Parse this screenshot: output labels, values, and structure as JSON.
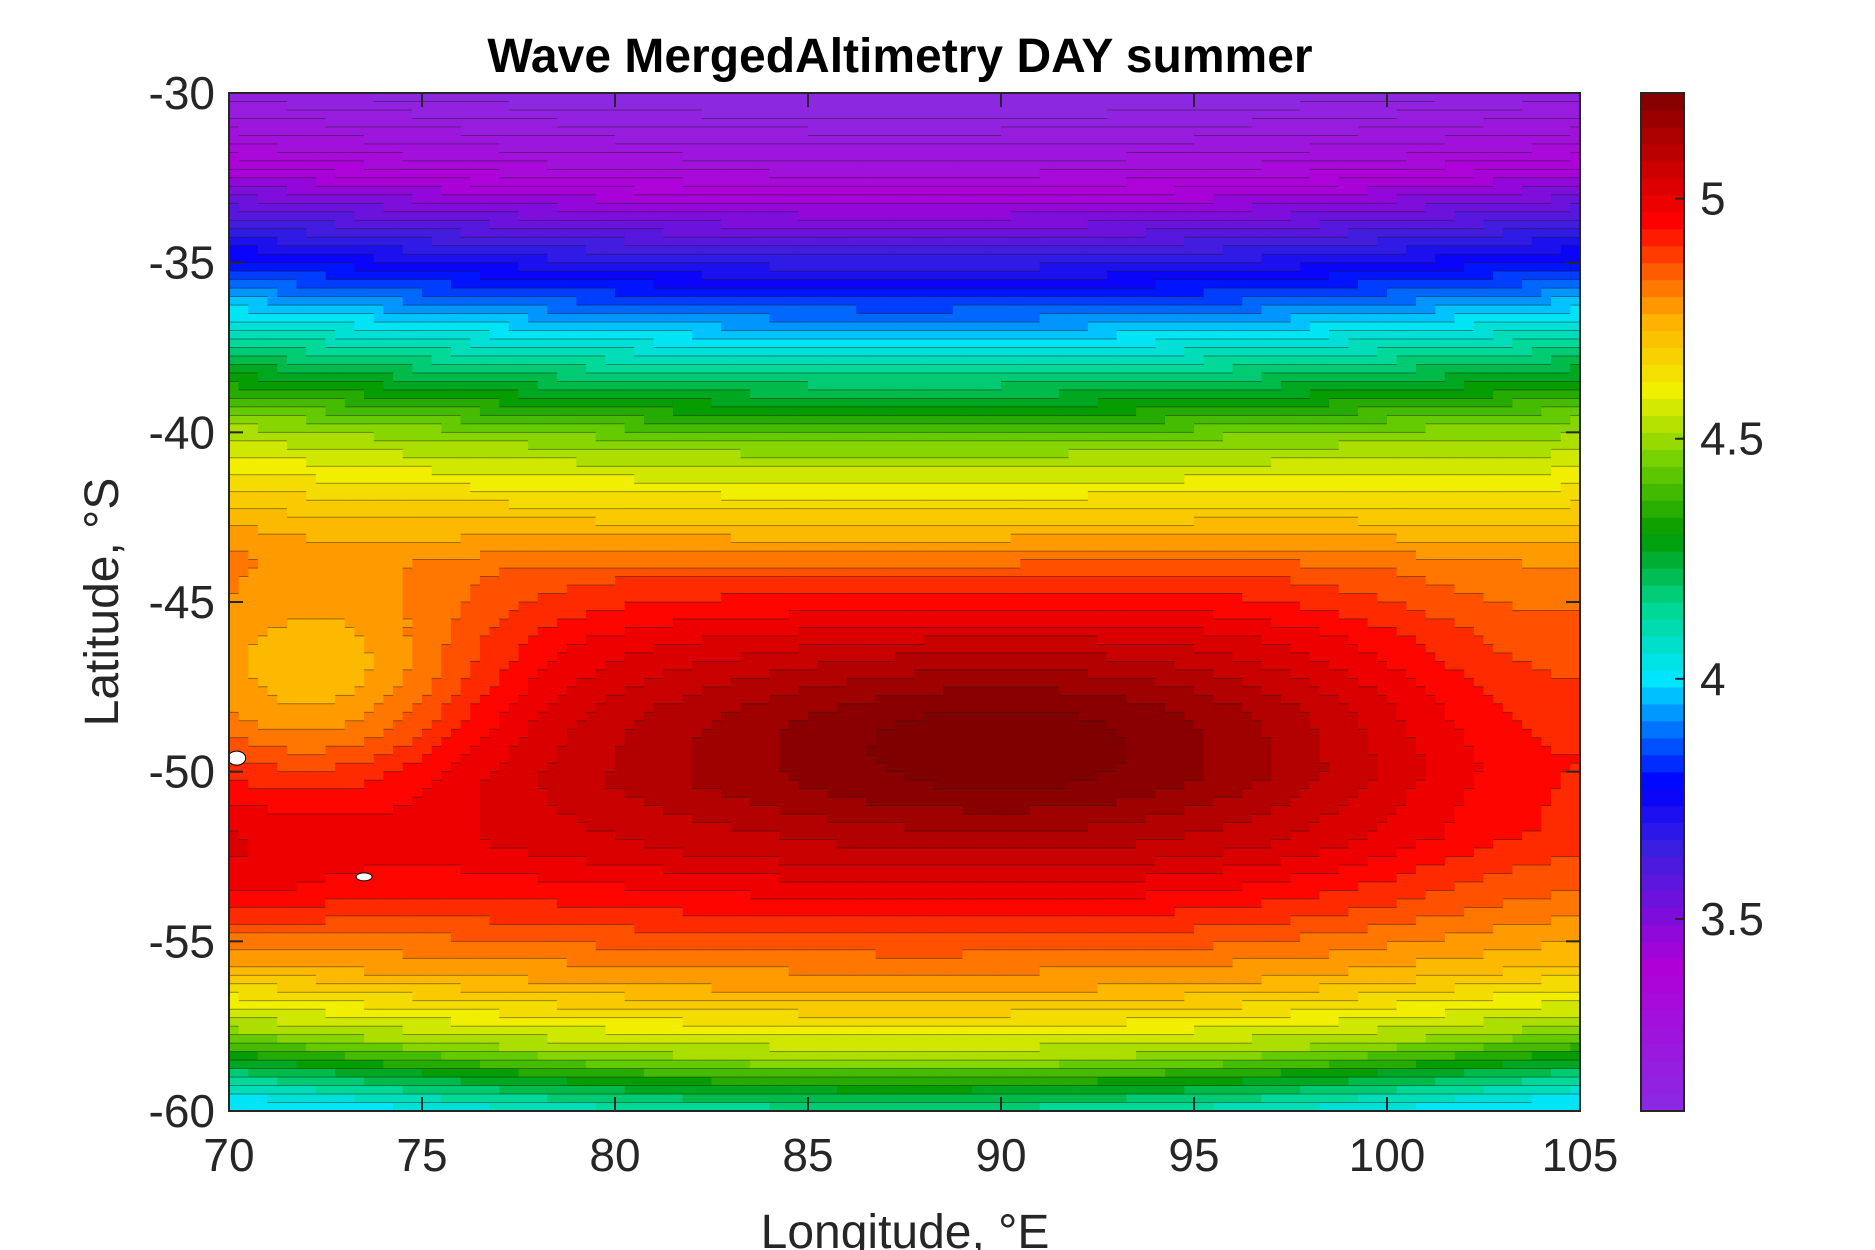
{
  "chart_data": {
    "type": "heatmap",
    "subtype": "filled-contour",
    "title": "Wave MergedAltimetry DAY summer",
    "xlabel": "Longitude, °E",
    "ylabel": "Latitude, °S",
    "xlim": [
      70,
      105
    ],
    "ylim": [
      -60,
      -30
    ],
    "xticks": [
      70,
      75,
      80,
      85,
      90,
      95,
      100,
      105
    ],
    "xtick_labels": [
      "70",
      "75",
      "80",
      "85",
      "90",
      "95",
      "100",
      "105"
    ],
    "yticks": [
      -30,
      -35,
      -40,
      -45,
      -50,
      -55,
      -60
    ],
    "ytick_labels": [
      "-30",
      "-35",
      "-40",
      "-45",
      "-50",
      "-55",
      "-60"
    ],
    "colorbar": {
      "range": [
        3.1,
        5.22
      ],
      "ticks": [
        3.5,
        4,
        4.5,
        5
      ],
      "tick_labels": [
        "3.5",
        "4",
        "4.5",
        "5"
      ],
      "colormap": "rainbow (violet-blue-cyan-green-yellow-orange-red-darkred)",
      "colormap_stops": [
        {
          "value": 3.1,
          "color": "#8a2be2"
        },
        {
          "value": 3.4,
          "color": "#b000d8"
        },
        {
          "value": 3.65,
          "color": "#3a1fe0"
        },
        {
          "value": 3.78,
          "color": "#0000ff"
        },
        {
          "value": 3.9,
          "color": "#0078ff"
        },
        {
          "value": 4.0,
          "color": "#00e5ff"
        },
        {
          "value": 4.15,
          "color": "#00d890"
        },
        {
          "value": 4.3,
          "color": "#009a00"
        },
        {
          "value": 4.45,
          "color": "#6fd000"
        },
        {
          "value": 4.6,
          "color": "#f0f000"
        },
        {
          "value": 4.75,
          "color": "#ffb000"
        },
        {
          "value": 4.85,
          "color": "#ff5a00"
        },
        {
          "value": 4.95,
          "color": "#ff0000"
        },
        {
          "value": 5.08,
          "color": "#c40000"
        },
        {
          "value": 5.22,
          "color": "#800000"
        }
      ]
    },
    "grid": false,
    "contour_lines": true,
    "features": [
      {
        "name": "maximum",
        "lon": 90,
        "lat": -49,
        "value": 5.2
      },
      {
        "name": "secondary-low",
        "lon": 72,
        "lat": -48,
        "value": 4.72
      },
      {
        "name": "southern-ridge",
        "lon": 70.5,
        "lat": -53,
        "value": 5.1
      },
      {
        "name": "northern-minimum",
        "lon": 80,
        "lat": -30,
        "value": 3.12
      }
    ],
    "lat_profile": [
      {
        "lat": -30,
        "value": 3.12
      },
      {
        "lat": -32,
        "value": 3.32
      },
      {
        "lat": -34,
        "value": 3.6
      },
      {
        "lat": -36,
        "value": 3.88
      },
      {
        "lat": -38,
        "value": 4.18
      },
      {
        "lat": -40,
        "value": 4.48
      },
      {
        "lat": -42,
        "value": 4.68
      },
      {
        "lat": -44,
        "value": 4.88
      },
      {
        "lat": -46,
        "value": 4.98
      },
      {
        "lat": -48,
        "value": 5.04
      },
      {
        "lat": -50,
        "value": 5.06
      },
      {
        "lat": -52,
        "value": 5.02
      },
      {
        "lat": -54,
        "value": 4.9
      },
      {
        "lat": -56,
        "value": 4.75
      },
      {
        "lat": -58,
        "value": 4.5
      },
      {
        "lat": -60,
        "value": 4.02
      }
    ]
  }
}
